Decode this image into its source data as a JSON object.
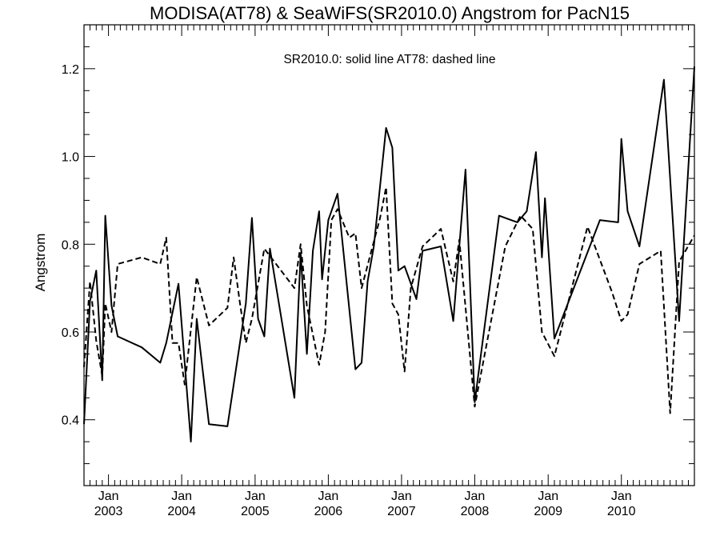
{
  "chart_data": {
    "type": "line",
    "title": "MODISA(AT78) & SeaWiFS(SR2010.0)  Angstrom for PacN15",
    "annotation": "SR2010.0: solid line   AT78: dashed line",
    "ylabel": "Angstrom",
    "xlabel": "",
    "xlim": [
      "2002-09-01",
      "2010-12-31"
    ],
    "ylim": [
      0.25,
      1.3
    ],
    "yticks": [
      0.4,
      0.6,
      0.8,
      1.0,
      1.2
    ],
    "ytick_labels": [
      "0.4",
      "0.6",
      "0.8",
      "1.0",
      "1.2"
    ],
    "xticks": [
      {
        "date": "2003-01-01",
        "month": "Jan",
        "year": "2003"
      },
      {
        "date": "2004-01-01",
        "month": "Jan",
        "year": "2004"
      },
      {
        "date": "2005-01-01",
        "month": "Jan",
        "year": "2005"
      },
      {
        "date": "2006-01-01",
        "month": "Jan",
        "year": "2006"
      },
      {
        "date": "2007-01-01",
        "month": "Jan",
        "year": "2007"
      },
      {
        "date": "2008-01-01",
        "month": "Jan",
        "year": "2008"
      },
      {
        "date": "2009-01-01",
        "month": "Jan",
        "year": "2009"
      },
      {
        "date": "2010-01-01",
        "month": "Jan",
        "year": "2010"
      }
    ],
    "grid": false,
    "series": [
      {
        "name": "SR2010.0",
        "style": "solid",
        "color": "#000000",
        "points": [
          [
            "2002-09-01",
            0.39
          ],
          [
            "2002-10-01",
            0.67
          ],
          [
            "2002-11-01",
            0.74
          ],
          [
            "2002-12-01",
            0.49
          ],
          [
            "2002-12-16",
            0.865
          ],
          [
            "2003-01-16",
            0.66
          ],
          [
            "2003-02-16",
            0.59
          ],
          [
            "2003-06-16",
            0.565
          ],
          [
            "2003-09-16",
            0.53
          ],
          [
            "2003-10-16",
            0.575
          ],
          [
            "2003-12-16",
            0.71
          ],
          [
            "2004-02-16",
            0.35
          ],
          [
            "2004-03-16",
            0.63
          ],
          [
            "2004-05-16",
            0.39
          ],
          [
            "2004-08-16",
            0.385
          ],
          [
            "2004-11-16",
            0.665
          ],
          [
            "2004-12-16",
            0.86
          ],
          [
            "2005-01-16",
            0.63
          ],
          [
            "2005-02-16",
            0.59
          ],
          [
            "2005-03-16",
            0.79
          ],
          [
            "2005-07-16",
            0.45
          ],
          [
            "2005-08-16",
            0.78
          ],
          [
            "2005-09-16",
            0.55
          ],
          [
            "2005-10-16",
            0.785
          ],
          [
            "2005-11-16",
            0.875
          ],
          [
            "2005-12-01",
            0.72
          ],
          [
            "2006-01-01",
            0.855
          ],
          [
            "2006-02-16",
            0.915
          ],
          [
            "2006-05-16",
            0.515
          ],
          [
            "2006-06-16",
            0.53
          ],
          [
            "2006-07-16",
            0.715
          ],
          [
            "2006-08-16",
            0.795
          ],
          [
            "2006-10-16",
            1.065
          ],
          [
            "2006-11-16",
            1.02
          ],
          [
            "2006-12-16",
            0.74
          ],
          [
            "2007-01-16",
            0.75
          ],
          [
            "2007-03-16",
            0.675
          ],
          [
            "2007-04-16",
            0.785
          ],
          [
            "2007-07-16",
            0.795
          ],
          [
            "2007-09-16",
            0.625
          ],
          [
            "2007-11-16",
            0.97
          ],
          [
            "2008-01-01",
            0.44
          ],
          [
            "2008-05-01",
            0.865
          ],
          [
            "2008-08-01",
            0.85
          ],
          [
            "2008-09-16",
            0.875
          ],
          [
            "2008-11-01",
            1.01
          ],
          [
            "2008-12-01",
            0.77
          ],
          [
            "2008-12-16",
            0.905
          ],
          [
            "2009-02-01",
            0.585
          ],
          [
            "2009-09-16",
            0.855
          ],
          [
            "2009-12-16",
            0.85
          ],
          [
            "2010-01-01",
            1.04
          ],
          [
            "2010-02-01",
            0.875
          ],
          [
            "2010-04-01",
            0.795
          ],
          [
            "2010-08-01",
            1.175
          ],
          [
            "2010-10-16",
            0.625
          ],
          [
            "2010-12-31",
            1.205
          ]
        ]
      },
      {
        "name": "AT78",
        "style": "dashed",
        "color": "#000000",
        "points": [
          [
            "2002-09-01",
            0.52
          ],
          [
            "2002-10-01",
            0.715
          ],
          [
            "2002-11-01",
            0.58
          ],
          [
            "2002-12-01",
            0.5
          ],
          [
            "2002-12-16",
            0.665
          ],
          [
            "2003-01-16",
            0.6
          ],
          [
            "2003-02-16",
            0.755
          ],
          [
            "2003-06-16",
            0.77
          ],
          [
            "2003-09-16",
            0.755
          ],
          [
            "2003-10-16",
            0.815
          ],
          [
            "2003-11-16",
            0.575
          ],
          [
            "2003-12-16",
            0.575
          ],
          [
            "2004-01-16",
            0.48
          ],
          [
            "2004-03-16",
            0.725
          ],
          [
            "2004-05-16",
            0.615
          ],
          [
            "2004-08-16",
            0.655
          ],
          [
            "2004-09-16",
            0.77
          ],
          [
            "2004-10-16",
            0.67
          ],
          [
            "2004-11-16",
            0.575
          ],
          [
            "2004-12-16",
            0.63
          ],
          [
            "2005-02-16",
            0.79
          ],
          [
            "2005-07-16",
            0.7
          ],
          [
            "2005-08-16",
            0.8
          ],
          [
            "2005-09-16",
            0.66
          ],
          [
            "2005-11-16",
            0.525
          ],
          [
            "2005-12-16",
            0.6
          ],
          [
            "2006-01-16",
            0.855
          ],
          [
            "2006-02-16",
            0.88
          ],
          [
            "2006-04-16",
            0.815
          ],
          [
            "2006-05-16",
            0.825
          ],
          [
            "2006-06-16",
            0.7
          ],
          [
            "2006-09-16",
            0.86
          ],
          [
            "2006-10-16",
            0.93
          ],
          [
            "2006-11-16",
            0.665
          ],
          [
            "2006-12-16",
            0.64
          ],
          [
            "2007-01-16",
            0.51
          ],
          [
            "2007-02-16",
            0.7
          ],
          [
            "2007-04-16",
            0.795
          ],
          [
            "2007-07-16",
            0.835
          ],
          [
            "2007-09-16",
            0.715
          ],
          [
            "2007-10-16",
            0.81
          ],
          [
            "2008-01-01",
            0.43
          ],
          [
            "2008-06-01",
            0.795
          ],
          [
            "2008-08-16",
            0.865
          ],
          [
            "2008-10-16",
            0.835
          ],
          [
            "2008-12-01",
            0.6
          ],
          [
            "2009-02-01",
            0.545
          ],
          [
            "2009-07-16",
            0.84
          ],
          [
            "2009-11-16",
            0.69
          ],
          [
            "2010-01-01",
            0.625
          ],
          [
            "2010-02-01",
            0.64
          ],
          [
            "2010-04-01",
            0.755
          ],
          [
            "2010-07-16",
            0.785
          ],
          [
            "2010-09-01",
            0.415
          ],
          [
            "2010-10-16",
            0.76
          ],
          [
            "2010-12-31",
            0.82
          ]
        ]
      }
    ]
  }
}
